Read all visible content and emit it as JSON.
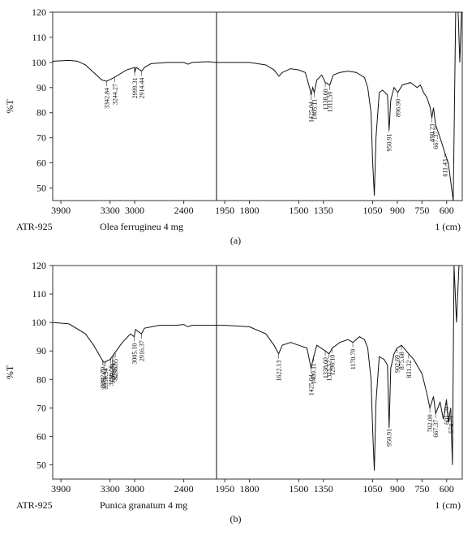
{
  "chart_data": [
    {
      "type": "line",
      "y_label": "%T",
      "instrument": "ATR-925",
      "sample": "Olea ferrugineu 4 mg",
      "x_unit": "1 (cm)",
      "caption": "(a)",
      "xlim": [
        4000,
        505
      ],
      "axis_break": 2000,
      "ylim": [
        45,
        120
      ],
      "xticks": [
        3900,
        3300,
        3000,
        2400,
        1950,
        1800,
        1500,
        1350,
        1050,
        900,
        750,
        600
      ],
      "yticks": [
        50,
        60,
        70,
        80,
        90,
        100,
        110,
        120
      ],
      "color": "#111111",
      "x": [
        4000,
        3800,
        3700,
        3600,
        3500,
        3400,
        3342,
        3250,
        3100,
        3000,
        2999,
        2980,
        2914,
        2880,
        2800,
        2600,
        2400,
        2350,
        2300,
        2100,
        2000,
        1950,
        1800,
        1700,
        1650,
        1620,
        1600,
        1550,
        1500,
        1460,
        1430,
        1425,
        1415,
        1405,
        1390,
        1360,
        1338,
        1311,
        1290,
        1250,
        1200,
        1150,
        1100,
        1080,
        1060,
        1050,
        1040,
        1030,
        1010,
        990,
        960,
        950,
        940,
        920,
        897,
        870,
        820,
        780,
        760,
        740,
        720,
        700,
        690,
        680,
        667,
        650,
        630,
        611,
        590,
        570,
        560,
        545,
        530,
        520,
        510
      ],
      "values": [
        100.5,
        100.8,
        100.5,
        99,
        96,
        93,
        92.5,
        94,
        97,
        98,
        96,
        98,
        96.5,
        98,
        99.5,
        100,
        100,
        99.3,
        100,
        100.3,
        100,
        100,
        100,
        99,
        97,
        94.5,
        96,
        97.5,
        97,
        96,
        89,
        87,
        90,
        88,
        93,
        95,
        92,
        91,
        95,
        96,
        96.5,
        96,
        94,
        90,
        80,
        60,
        47,
        70,
        88,
        89,
        87,
        73,
        85,
        90,
        88,
        91,
        92,
        90,
        91,
        88,
        86,
        82,
        78,
        82,
        75,
        72,
        68,
        64,
        60,
        50,
        45,
        120,
        120,
        100,
        120
      ],
      "peaks": [
        {
          "value": 3342.84,
          "label": "3342.84"
        },
        {
          "value": 3244.27,
          "label": "3244.27"
        },
        {
          "value": 2999.31,
          "label": "2999.31"
        },
        {
          "value": 2914.44,
          "label": "2914.44"
        },
        {
          "value": 1425.04,
          "label": "1425.04"
        },
        {
          "value": 1405.11,
          "label": "1405.11"
        },
        {
          "value": 1338.6,
          "label": "1338.60"
        },
        {
          "value": 1311.59,
          "label": "1311.59"
        },
        {
          "value": 950.91,
          "label": "950.91"
        },
        {
          "value": 896.9,
          "label": "896.90"
        },
        {
          "value": 690.23,
          "label": "690.23"
        },
        {
          "value": 667.37,
          "label": "667.37"
        },
        {
          "value": 611.43,
          "label": "611.43"
        }
      ]
    },
    {
      "type": "line",
      "y_label": "%T",
      "instrument": "ATR-925",
      "sample": "Punica granatum 4 mg",
      "x_unit": "1 (cm)",
      "caption": "(b)",
      "xlim": [
        4000,
        505
      ],
      "axis_break": 2000,
      "ylim": [
        45,
        120
      ],
      "xticks": [
        3900,
        3300,
        3000,
        2400,
        1950,
        1800,
        1500,
        1350,
        1050,
        900,
        750,
        600
      ],
      "yticks": [
        50,
        60,
        70,
        80,
        90,
        100,
        110,
        120
      ],
      "color": "#111111",
      "x": [
        4000,
        3800,
        3600,
        3500,
        3400,
        3375,
        3300,
        3250,
        3150,
        3050,
        3005,
        2990,
        2916,
        2880,
        2700,
        2500,
        2400,
        2350,
        2300,
        2000,
        1950,
        1800,
        1700,
        1650,
        1622,
        1600,
        1550,
        1500,
        1450,
        1425,
        1409,
        1390,
        1338,
        1315,
        1296,
        1250,
        1200,
        1170,
        1130,
        1100,
        1080,
        1060,
        1050,
        1040,
        1030,
        1010,
        980,
        960,
        950,
        940,
        920,
        902,
        875,
        831,
        800,
        750,
        720,
        702,
        680,
        667,
        640,
        620,
        601,
        590,
        575,
        565,
        555,
        540,
        525,
        510
      ],
      "values": [
        100,
        99.5,
        96,
        92,
        87,
        86,
        87,
        89,
        93,
        96,
        95,
        97.5,
        96,
        98,
        99,
        99,
        99.3,
        98.5,
        99,
        99,
        99,
        98.5,
        96,
        92,
        89,
        92,
        93,
        92,
        91,
        84,
        88,
        92,
        90,
        89,
        91,
        93,
        94,
        93,
        95,
        94,
        91,
        80,
        62,
        48,
        72,
        88,
        87,
        85,
        63,
        84,
        89,
        91,
        92,
        89,
        87,
        82,
        75,
        70,
        74,
        68,
        72,
        66,
        73,
        65,
        70,
        50,
        120,
        100,
        120,
        120
      ],
      "peaks": [
        {
          "value": 3392.79,
          "label": "3392.79"
        },
        {
          "value": 3375.43,
          "label": "3375.43"
        },
        {
          "value": 3356.34,
          "label": "3356.34"
        },
        {
          "value": 3290.56,
          "label": "3290.56"
        },
        {
          "value": 3269.91,
          "label": "3269.91"
        },
        {
          "value": 3253.37,
          "label": "3253.37"
        },
        {
          "value": 3236.55,
          "label": "3236.55"
        },
        {
          "value": 3005.1,
          "label": "3005.10"
        },
        {
          "value": 2916.37,
          "label": "2916.37"
        },
        {
          "value": 1622.13,
          "label": "1622.13"
        },
        {
          "value": 1425.04,
          "label": "1425.04"
        },
        {
          "value": 1409.11,
          "label": "1409.11"
        },
        {
          "value": 1338.6,
          "label": "1338.60"
        },
        {
          "value": 1315.52,
          "label": "1315.52"
        },
        {
          "value": 1296.1,
          "label": "1296.10"
        },
        {
          "value": 1170.79,
          "label": "1170.79"
        },
        {
          "value": 950.91,
          "label": "950.91"
        },
        {
          "value": 902.69,
          "label": "902.69"
        },
        {
          "value": 875.68,
          "label": "875.68"
        },
        {
          "value": 831.32,
          "label": "831.32"
        },
        {
          "value": 702.09,
          "label": "702.09"
        },
        {
          "value": 667.37,
          "label": "667.37"
        },
        {
          "value": 601.79,
          "label": "601.79"
        },
        {
          "value": 574.79,
          "label": "574.79"
        }
      ]
    }
  ]
}
